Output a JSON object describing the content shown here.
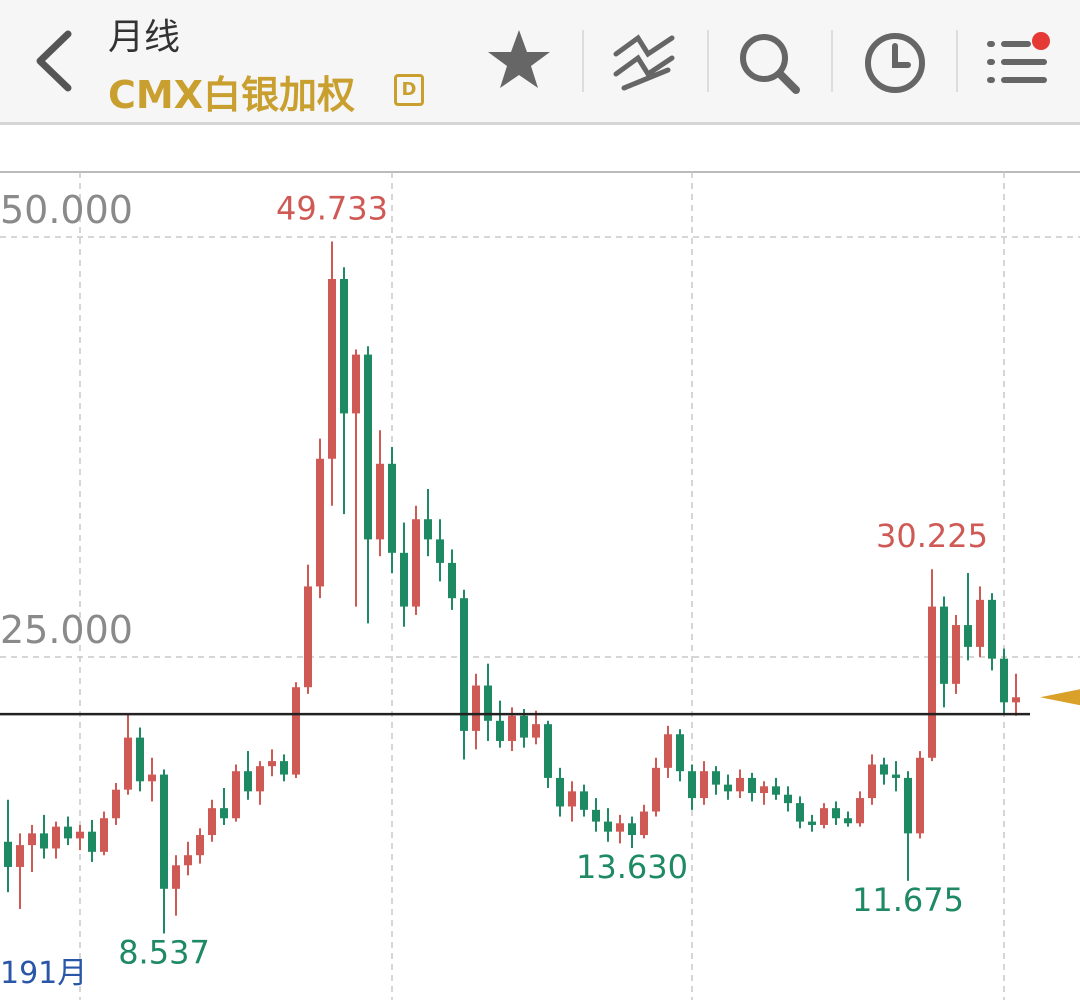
{
  "header": {
    "period": "月线",
    "symbol": "CMX白银加权",
    "badge": "D"
  },
  "chart_data": {
    "type": "candlestick",
    "up_color": "#cf5a55",
    "down_color": "#1e8a63",
    "ylim": [
      4.58,
      53.87
    ],
    "yticks": [
      {
        "value": 50,
        "label": "50.000"
      },
      {
        "value": 25,
        "label": "25.000"
      }
    ],
    "grid": true,
    "xgrid": [
      6,
      32,
      57,
      83
    ],
    "x_label": "191月",
    "reference_line": 21.6,
    "candles": [
      [
        14.0,
        16.5,
        11.0,
        12.5
      ],
      [
        12.5,
        14.5,
        10.0,
        13.8
      ],
      [
        13.8,
        15.0,
        12.2,
        14.5
      ],
      [
        14.5,
        15.6,
        13.0,
        13.6
      ],
      [
        13.6,
        15.2,
        13.0,
        14.9
      ],
      [
        14.9,
        15.5,
        13.8,
        14.2
      ],
      [
        14.2,
        15.0,
        13.5,
        14.6
      ],
      [
        14.6,
        15.3,
        12.8,
        13.4
      ],
      [
        13.4,
        15.8,
        13.2,
        15.4
      ],
      [
        15.4,
        17.5,
        15.0,
        17.1
      ],
      [
        17.1,
        21.6,
        16.8,
        20.2
      ],
      [
        20.2,
        20.8,
        17.0,
        17.6
      ],
      [
        17.6,
        19.0,
        16.4,
        18.0
      ],
      [
        18.0,
        18.3,
        8.537,
        11.2
      ],
      [
        11.2,
        13.2,
        9.6,
        12.6
      ],
      [
        12.6,
        14.0,
        12.0,
        13.2
      ],
      [
        13.2,
        14.8,
        12.7,
        14.4
      ],
      [
        14.4,
        16.5,
        14.0,
        16.0
      ],
      [
        16.0,
        17.2,
        15.0,
        15.4
      ],
      [
        15.4,
        18.6,
        15.2,
        18.2
      ],
      [
        18.2,
        19.4,
        16.5,
        17.0
      ],
      [
        17.0,
        18.8,
        16.2,
        18.5
      ],
      [
        18.5,
        19.5,
        17.9,
        18.8
      ],
      [
        18.8,
        19.2,
        17.6,
        18.0
      ],
      [
        18.0,
        23.5,
        17.8,
        23.2
      ],
      [
        23.2,
        30.5,
        22.8,
        29.2
      ],
      [
        29.2,
        38.0,
        28.5,
        36.8
      ],
      [
        36.8,
        49.733,
        34.0,
        47.5
      ],
      [
        47.5,
        48.2,
        33.5,
        39.5
      ],
      [
        39.5,
        43.3,
        28.0,
        43.0
      ],
      [
        43.0,
        43.5,
        27.0,
        32.0
      ],
      [
        32.0,
        38.5,
        31.0,
        36.5
      ],
      [
        36.5,
        37.5,
        30.0,
        31.2
      ],
      [
        31.2,
        33.0,
        26.8,
        28.0
      ],
      [
        28.0,
        34.0,
        27.5,
        33.2
      ],
      [
        33.2,
        35.0,
        31.0,
        32.0
      ],
      [
        32.0,
        33.2,
        29.5,
        30.6
      ],
      [
        30.6,
        31.4,
        27.8,
        28.5
      ],
      [
        28.5,
        29.0,
        18.9,
        20.6
      ],
      [
        20.6,
        24.0,
        19.5,
        23.3
      ],
      [
        23.3,
        24.6,
        20.0,
        21.2
      ],
      [
        21.2,
        22.4,
        19.6,
        20.0
      ],
      [
        20.0,
        22.0,
        19.4,
        21.5
      ],
      [
        21.5,
        21.9,
        19.6,
        20.2
      ],
      [
        20.2,
        21.8,
        19.8,
        21.0
      ],
      [
        21.0,
        21.2,
        17.2,
        17.8
      ],
      [
        17.8,
        18.4,
        15.5,
        16.1
      ],
      [
        16.1,
        17.6,
        15.2,
        17.0
      ],
      [
        17.0,
        17.4,
        15.5,
        15.9
      ],
      [
        15.9,
        16.6,
        14.6,
        15.2
      ],
      [
        15.2,
        16.0,
        14.0,
        14.6
      ],
      [
        14.6,
        15.6,
        13.9,
        15.1
      ],
      [
        15.1,
        15.5,
        13.63,
        14.4
      ],
      [
        14.4,
        16.2,
        14.2,
        15.8
      ],
      [
        15.8,
        19.0,
        15.5,
        18.4
      ],
      [
        18.4,
        20.9,
        17.8,
        20.4
      ],
      [
        20.4,
        20.7,
        17.6,
        18.2
      ],
      [
        18.2,
        18.6,
        15.9,
        16.6
      ],
      [
        16.6,
        18.8,
        16.2,
        18.2
      ],
      [
        18.2,
        18.5,
        16.8,
        17.4
      ],
      [
        17.4,
        18.0,
        16.5,
        17.0
      ],
      [
        17.0,
        18.3,
        16.6,
        17.8
      ],
      [
        17.8,
        18.1,
        16.4,
        16.9
      ],
      [
        16.9,
        17.6,
        16.2,
        17.3
      ],
      [
        17.3,
        17.8,
        16.5,
        16.8
      ],
      [
        16.8,
        17.3,
        15.8,
        16.3
      ],
      [
        16.3,
        16.7,
        14.8,
        15.2
      ],
      [
        15.2,
        15.6,
        14.6,
        15.0
      ],
      [
        15.0,
        16.3,
        14.8,
        16.0
      ],
      [
        16.0,
        16.4,
        15.0,
        15.4
      ],
      [
        15.4,
        15.8,
        14.9,
        15.1
      ],
      [
        15.1,
        17.0,
        14.9,
        16.6
      ],
      [
        16.6,
        19.2,
        16.2,
        18.6
      ],
      [
        18.6,
        19.0,
        17.4,
        18.0
      ],
      [
        18.0,
        18.8,
        17.0,
        17.8
      ],
      [
        17.8,
        18.2,
        11.675,
        14.5
      ],
      [
        14.5,
        19.4,
        14.2,
        19.0
      ],
      [
        19.0,
        30.225,
        18.8,
        28.0
      ],
      [
        28.0,
        28.6,
        22.0,
        23.4
      ],
      [
        23.4,
        27.5,
        22.8,
        26.9
      ],
      [
        26.9,
        30.0,
        24.8,
        25.6
      ],
      [
        25.6,
        29.2,
        25.0,
        28.4
      ],
      [
        28.4,
        28.8,
        24.2,
        24.9
      ],
      [
        24.9,
        25.5,
        21.6,
        22.3
      ],
      [
        22.3,
        24.0,
        21.5,
        22.6
      ]
    ],
    "annotations": [
      {
        "label": "49.733",
        "candle": 27,
        "position": "high"
      },
      {
        "label": "30.225",
        "candle": 77,
        "position": "high"
      },
      {
        "label": "8.537",
        "candle": 13,
        "position": "low"
      },
      {
        "label": "13.630",
        "candle": 52,
        "position": "low"
      },
      {
        "label": "11.675",
        "candle": 75,
        "position": "low"
      }
    ]
  }
}
